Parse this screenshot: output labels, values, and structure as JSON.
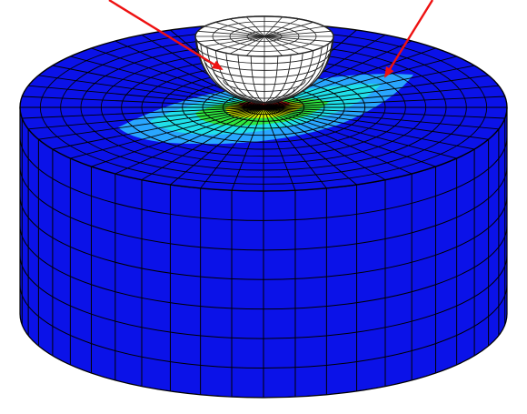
{
  "figure": {
    "description_hidden": "",
    "colors": {
      "background": "#ffffff",
      "base_fill": "#0b12e8",
      "base_shadow": "#0a10c4",
      "mesh_lines": "#000000",
      "contour_light_blue": "#29a6ff",
      "contour_cyan": "#20e0ea",
      "contour_green": "#2ee640",
      "contour_yellow": "#dcf000",
      "contour_red": "#ee1a1a",
      "indenter_fill": "#ffffff",
      "indenter_lines": "#222222",
      "arrow_color": "#ee1111"
    },
    "parts": [
      "cylindrical-specimen",
      "spherical-indenter",
      "contact-stress-contour",
      "left-arrow",
      "right-arrow"
    ]
  }
}
